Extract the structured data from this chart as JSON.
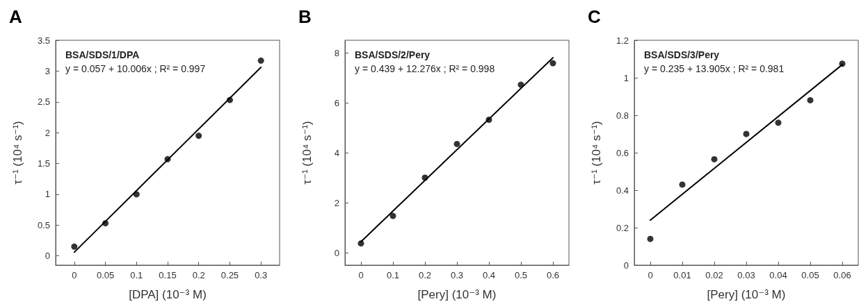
{
  "chart_data": [
    {
      "type": "scatter",
      "title": "A",
      "xlabel": "[DPA] (10⁻³ M)",
      "ylabel": "τ⁻¹ (10⁴ s⁻¹)",
      "annotations": [
        "BSA/SDS/1/DPA",
        "y = 0.057 + 10.006x ; R² = 0.997"
      ],
      "marker": "circle",
      "grid": false,
      "xlim": [
        -0.03,
        0.33
      ],
      "xticks": [
        0,
        0.05,
        0.1,
        0.15,
        0.2,
        0.25,
        0.3
      ],
      "ylim": [
        -0.15,
        3.5
      ],
      "yticks": [
        0,
        0.5,
        1,
        1.5,
        2,
        2.5,
        3,
        3.5
      ],
      "series": [
        {
          "color": "#000000",
          "x": [
            0,
            0.05,
            0.1,
            0.15,
            0.2,
            0.25,
            0.3
          ],
          "values": [
            0.15,
            0.53,
            1.0,
            1.57,
            1.95,
            2.53,
            3.17
          ]
        },
        {
          "type": "line",
          "line_style": "solid",
          "marker": "none",
          "color": "#000000",
          "x": [
            0,
            0.3
          ],
          "values": [
            0.06,
            3.06
          ]
        }
      ]
    },
    {
      "type": "scatter",
      "title": "B",
      "xlabel": "[Pery] (10⁻³ M)",
      "ylabel": "τ⁻¹ (10⁴ s⁻¹)",
      "annotations": [
        "BSA/SDS/2/Pery",
        "y = 0.439 + 12.276x ; R² = 0.998"
      ],
      "marker": "circle",
      "grid": false,
      "xlim": [
        -0.05,
        0.65
      ],
      "xticks": [
        0,
        0.1,
        0.2,
        0.3,
        0.4,
        0.5,
        0.6
      ],
      "ylim": [
        -0.5,
        8.5
      ],
      "yticks": [
        0,
        2,
        4,
        6,
        8
      ],
      "series": [
        {
          "color": "#000000",
          "x": [
            0,
            0.1,
            0.2,
            0.3,
            0.4,
            0.5,
            0.6
          ],
          "values": [
            0.37,
            1.47,
            3.0,
            4.35,
            5.32,
            6.72,
            7.58
          ]
        },
        {
          "type": "line",
          "line_style": "solid",
          "marker": "none",
          "color": "#000000",
          "x": [
            0,
            0.6
          ],
          "values": [
            0.44,
            7.8
          ]
        }
      ]
    },
    {
      "type": "scatter",
      "title": "C",
      "xlabel": "[Pery] (10⁻³ M)",
      "ylabel": "τ⁻¹ (10⁴ s⁻¹)",
      "annotations": [
        "BSA/SDS/3/Pery",
        "y = 0.235 + 13.905x ; R² = 0.981"
      ],
      "marker": "circle",
      "grid": false,
      "xlim": [
        -0.005,
        0.065
      ],
      "xticks": [
        0,
        0.01,
        0.02,
        0.03,
        0.04,
        0.05,
        0.06
      ],
      "ylim": [
        0,
        1.2
      ],
      "yticks": [
        0,
        0.2,
        0.4,
        0.6,
        0.8,
        1,
        1.2
      ],
      "series": [
        {
          "color": "#000000",
          "x": [
            0,
            0.01,
            0.02,
            0.03,
            0.04,
            0.05,
            0.06
          ],
          "values": [
            0.14,
            0.43,
            0.565,
            0.7,
            0.76,
            0.88,
            1.075
          ]
        },
        {
          "type": "line",
          "line_style": "solid",
          "marker": "none",
          "color": "#000000",
          "x": [
            0,
            0.06
          ],
          "values": [
            0.24,
            1.07
          ]
        }
      ]
    }
  ]
}
